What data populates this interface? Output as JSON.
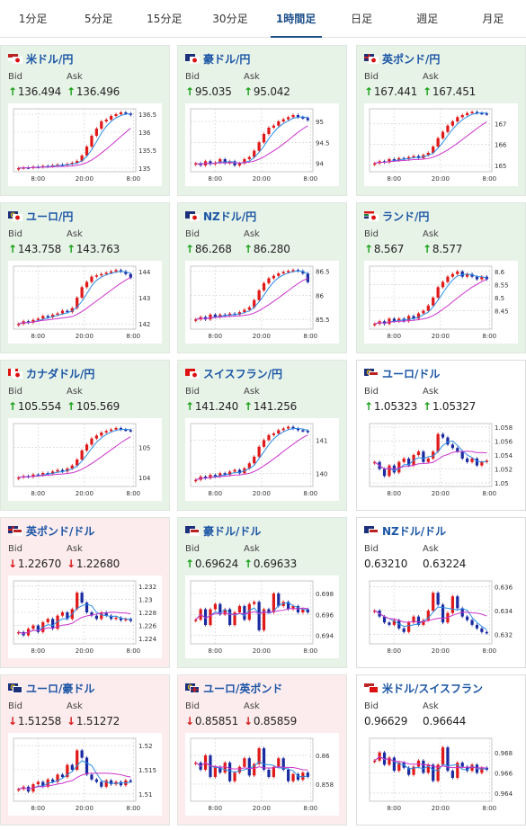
{
  "tabs": [
    {
      "label": "1分足",
      "active": false
    },
    {
      "label": "5分足",
      "active": false
    },
    {
      "label": "15分足",
      "active": false
    },
    {
      "label": "30分足",
      "active": false
    },
    {
      "label": "1時間足",
      "active": true
    },
    {
      "label": "日足",
      "active": false
    },
    {
      "label": "週足",
      "active": false
    },
    {
      "label": "月足",
      "active": false
    }
  ],
  "labels": {
    "bid": "Bid",
    "ask": "Ask"
  },
  "colors": {
    "up_card": "#e8f3e8",
    "down_card": "#fdecee",
    "up_arrow": "#18a018",
    "down_arrow": "#d61818",
    "bull_candle": "#e01818",
    "bear_candle": "#1a2aa0",
    "ma_short": "#2a8de8",
    "ma_long": "#cc33cc"
  },
  "x_ticks": [
    "8:00",
    "20:00",
    "8:00"
  ],
  "cards": [
    {
      "pair": "米ドル/円",
      "flags": [
        "us",
        "jp"
      ],
      "trend": "up",
      "bid": "136.494",
      "ask": "136.496",
      "bid_dir": "up",
      "ask_dir": "up",
      "chart_data": {
        "type": "candlestick",
        "yticks": [
          "136.5",
          "136",
          "135.5",
          "135"
        ],
        "ylim": [
          134.9,
          136.65
        ],
        "values": [
          135.0,
          135.02,
          135.01,
          135.04,
          135.03,
          135.06,
          135.05,
          135.08,
          135.1,
          135.09,
          135.12,
          135.15,
          135.2,
          135.35,
          135.6,
          135.9,
          136.1,
          136.3,
          136.35,
          136.45,
          136.5,
          136.55,
          136.52,
          136.48
        ]
      }
    },
    {
      "pair": "豪ドル/円",
      "flags": [
        "au",
        "jp"
      ],
      "trend": "up",
      "bid": "95.035",
      "ask": "95.042",
      "bid_dir": "up",
      "ask_dir": "up",
      "chart_data": {
        "type": "candlestick",
        "yticks": [
          "95",
          "94.5",
          "94"
        ],
        "ylim": [
          93.8,
          95.3
        ],
        "values": [
          94.0,
          93.95,
          94.05,
          93.98,
          94.02,
          94.1,
          94.0,
          94.05,
          93.95,
          94.0,
          94.1,
          94.15,
          94.3,
          94.5,
          94.7,
          94.85,
          94.9,
          95.0,
          95.05,
          95.1,
          95.15,
          95.1,
          95.08,
          95.03
        ]
      }
    },
    {
      "pair": "英ポンド/円",
      "flags": [
        "gb",
        "jp"
      ],
      "trend": "up",
      "bid": "167.441",
      "ask": "167.451",
      "bid_dir": "up",
      "ask_dir": "up",
      "chart_data": {
        "type": "candlestick",
        "yticks": [
          "167",
          "166",
          "165"
        ],
        "ylim": [
          164.7,
          167.7
        ],
        "values": [
          165.1,
          165.2,
          165.15,
          165.3,
          165.25,
          165.35,
          165.3,
          165.4,
          165.45,
          165.35,
          165.5,
          165.6,
          165.9,
          166.3,
          166.6,
          166.9,
          167.1,
          167.3,
          167.4,
          167.5,
          167.55,
          167.5,
          167.48,
          167.44
        ]
      }
    },
    {
      "pair": "ユーロ/円",
      "flags": [
        "eu",
        "jp"
      ],
      "trend": "up",
      "bid": "143.758",
      "ask": "143.763",
      "bid_dir": "up",
      "ask_dir": "up",
      "chart_data": {
        "type": "candlestick",
        "yticks": [
          "144",
          "143",
          "142"
        ],
        "ylim": [
          141.8,
          144.2
        ],
        "values": [
          142.0,
          142.1,
          142.05,
          142.15,
          142.2,
          142.3,
          142.25,
          142.35,
          142.4,
          142.5,
          142.45,
          142.6,
          143.0,
          143.4,
          143.6,
          143.8,
          143.85,
          143.9,
          143.95,
          144.0,
          144.05,
          144.0,
          143.9,
          143.76
        ]
      }
    },
    {
      "pair": "NZドル/円",
      "flags": [
        "nz",
        "jp"
      ],
      "trend": "up",
      "bid": "86.268",
      "ask": "86.280",
      "bid_dir": "up",
      "ask_dir": "up",
      "chart_data": {
        "type": "candlestick",
        "yticks": [
          "86.5",
          "86",
          "85.5"
        ],
        "ylim": [
          85.3,
          86.6
        ],
        "values": [
          85.5,
          85.55,
          85.5,
          85.6,
          85.55,
          85.6,
          85.58,
          85.62,
          85.6,
          85.65,
          85.7,
          85.75,
          85.9,
          86.1,
          86.25,
          86.35,
          86.4,
          86.45,
          86.48,
          86.5,
          86.52,
          86.5,
          86.45,
          86.27
        ]
      }
    },
    {
      "pair": "ランド/円",
      "flags": [
        "za",
        "jp"
      ],
      "trend": "up",
      "bid": "8.567",
      "ask": "8.577",
      "bid_dir": "up",
      "ask_dir": "up",
      "chart_data": {
        "type": "candlestick",
        "yticks": [
          "8.6",
          "8.55",
          "8.5",
          "8.45"
        ],
        "ylim": [
          8.38,
          8.62
        ],
        "values": [
          8.4,
          8.41,
          8.4,
          8.42,
          8.41,
          8.42,
          8.41,
          8.43,
          8.42,
          8.44,
          8.45,
          8.47,
          8.5,
          8.54,
          8.56,
          8.58,
          8.59,
          8.6,
          8.58,
          8.59,
          8.58,
          8.57,
          8.58,
          8.57
        ]
      }
    },
    {
      "pair": "カナダドル/円",
      "flags": [
        "ca",
        "jp"
      ],
      "trend": "up",
      "bid": "105.554",
      "ask": "105.569",
      "bid_dir": "up",
      "ask_dir": "up",
      "chart_data": {
        "type": "candlestick",
        "yticks": [
          "105",
          "104"
        ],
        "ylim": [
          103.7,
          105.8
        ],
        "values": [
          104.0,
          104.05,
          104.02,
          104.1,
          104.08,
          104.15,
          104.12,
          104.2,
          104.25,
          104.2,
          104.3,
          104.4,
          104.6,
          104.9,
          105.1,
          105.3,
          105.4,
          105.5,
          105.55,
          105.6,
          105.65,
          105.6,
          105.58,
          105.55
        ]
      }
    },
    {
      "pair": "スイスフラン/円",
      "flags": [
        "ch",
        "jp"
      ],
      "trend": "up",
      "bid": "141.240",
      "ask": "141.256",
      "bid_dir": "up",
      "ask_dir": "up",
      "chart_data": {
        "type": "candlestick",
        "yticks": [
          "141",
          "140"
        ],
        "ylim": [
          139.6,
          141.5
        ],
        "values": [
          139.8,
          139.9,
          139.85,
          139.95,
          139.9,
          140.0,
          139.95,
          140.05,
          140.1,
          140.0,
          140.15,
          140.3,
          140.5,
          140.8,
          141.0,
          141.15,
          141.2,
          141.3,
          141.35,
          141.4,
          141.35,
          141.3,
          141.28,
          141.24
        ]
      }
    },
    {
      "pair": "ユーロ/ドル",
      "flags": [
        "eu",
        "us"
      ],
      "trend": "flat",
      "bid": "1.05323",
      "ask": "1.05327",
      "bid_dir": "up",
      "ask_dir": "up",
      "chart_data": {
        "type": "candlestick",
        "yticks": [
          "1.058",
          "1.056",
          "1.054",
          "1.052",
          "1.05"
        ],
        "ylim": [
          1.0495,
          1.0585
        ],
        "values": [
          1.053,
          1.052,
          1.051,
          1.0525,
          1.0515,
          1.053,
          1.0535,
          1.0525,
          1.054,
          1.0545,
          1.053,
          1.0535,
          1.0545,
          1.057,
          1.0565,
          1.0555,
          1.055,
          1.0545,
          1.0535,
          1.053,
          1.0535,
          1.0525,
          1.053,
          1.0532
        ]
      }
    },
    {
      "pair": "英ポンド/ドル",
      "flags": [
        "gb",
        "us"
      ],
      "trend": "down",
      "bid": "1.22670",
      "ask": "1.22680",
      "bid_dir": "down",
      "ask_dir": "down",
      "chart_data": {
        "type": "candlestick",
        "yticks": [
          "1.232",
          "1.23",
          "1.228",
          "1.226",
          "1.224"
        ],
        "ylim": [
          1.2232,
          1.2328
        ],
        "values": [
          1.225,
          1.2245,
          1.2255,
          1.226,
          1.225,
          1.2265,
          1.227,
          1.2255,
          1.2275,
          1.228,
          1.227,
          1.2285,
          1.231,
          1.2295,
          1.228,
          1.2275,
          1.227,
          1.228,
          1.2275,
          1.227,
          1.2272,
          1.2268,
          1.227,
          1.2267
        ]
      }
    },
    {
      "pair": "豪ドル/ドル",
      "flags": [
        "au",
        "us"
      ],
      "trend": "up",
      "bid": "0.69624",
      "ask": "0.69633",
      "bid_dir": "up",
      "ask_dir": "up",
      "chart_data": {
        "type": "candlestick",
        "yticks": [
          "0.698",
          "0.696",
          "0.694"
        ],
        "ylim": [
          0.6932,
          0.6992
        ],
        "values": [
          0.6955,
          0.6965,
          0.695,
          0.6965,
          0.697,
          0.696,
          0.6965,
          0.695,
          0.6962,
          0.6968,
          0.6955,
          0.697,
          0.6972,
          0.6945,
          0.6965,
          0.6962,
          0.698,
          0.6968,
          0.6972,
          0.6965,
          0.6968,
          0.6962,
          0.6965,
          0.6962
        ]
      }
    },
    {
      "pair": "NZドル/ドル",
      "flags": [
        "nz",
        "us"
      ],
      "trend": "flat",
      "bid": "0.63210",
      "ask": "0.63224",
      "bid_dir": "none",
      "ask_dir": "none",
      "chart_data": {
        "type": "candlestick",
        "yticks": [
          "0.636",
          "0.634",
          "0.632"
        ],
        "ylim": [
          0.6312,
          0.6365
        ],
        "values": [
          0.634,
          0.6335,
          0.633,
          0.6328,
          0.6332,
          0.6325,
          0.6322,
          0.633,
          0.6335,
          0.6328,
          0.6332,
          0.634,
          0.6355,
          0.6345,
          0.633,
          0.6338,
          0.6352,
          0.6342,
          0.6335,
          0.6332,
          0.6328,
          0.6325,
          0.6322,
          0.6321
        ]
      }
    },
    {
      "pair": "ユーロ/豪ドル",
      "flags": [
        "eu",
        "au"
      ],
      "trend": "down",
      "bid": "1.51258",
      "ask": "1.51272",
      "bid_dir": "down",
      "ask_dir": "down",
      "chart_data": {
        "type": "candlestick",
        "yticks": [
          "1.52",
          "1.515",
          "1.51"
        ],
        "ylim": [
          1.5085,
          1.5215
        ],
        "values": [
          1.511,
          1.5115,
          1.5105,
          1.512,
          1.5125,
          1.5115,
          1.513,
          1.5125,
          1.514,
          1.5135,
          1.516,
          1.515,
          1.519,
          1.5175,
          1.514,
          1.513,
          1.5125,
          1.5115,
          1.5128,
          1.512,
          1.5125,
          1.5118,
          1.5128,
          1.5126
        ]
      }
    },
    {
      "pair": "ユーロ/英ポンド",
      "flags": [
        "eu",
        "gb"
      ],
      "trend": "down",
      "bid": "0.85851",
      "ask": "0.85859",
      "bid_dir": "down",
      "ask_dir": "down",
      "chart_data": {
        "type": "candlestick",
        "yticks": [
          "0.86",
          "0.858"
        ],
        "ylim": [
          0.8568,
          0.8612
        ],
        "values": [
          0.8595,
          0.859,
          0.86,
          0.8585,
          0.8592,
          0.8588,
          0.8595,
          0.8582,
          0.8588,
          0.8592,
          0.8598,
          0.8586,
          0.8594,
          0.8605,
          0.859,
          0.8585,
          0.8592,
          0.8598,
          0.859,
          0.8582,
          0.8587,
          0.8583,
          0.8588,
          0.8585
        ]
      }
    },
    {
      "pair": "米ドル/スイスフラン",
      "flags": [
        "us",
        "ch"
      ],
      "trend": "flat",
      "bid": "0.96629",
      "ask": "0.96644",
      "bid_dir": "none",
      "ask_dir": "none",
      "chart_data": {
        "type": "candlestick",
        "yticks": [
          "0.968",
          "0.966",
          "0.964"
        ],
        "ylim": [
          0.9632,
          0.9694
        ],
        "values": [
          0.9672,
          0.968,
          0.9668,
          0.9675,
          0.9662,
          0.967,
          0.9665,
          0.9658,
          0.9666,
          0.9672,
          0.966,
          0.9668,
          0.9652,
          0.9668,
          0.9685,
          0.9662,
          0.9655,
          0.967,
          0.9666,
          0.9662,
          0.9668,
          0.966,
          0.9665,
          0.9663
        ]
      }
    }
  ]
}
